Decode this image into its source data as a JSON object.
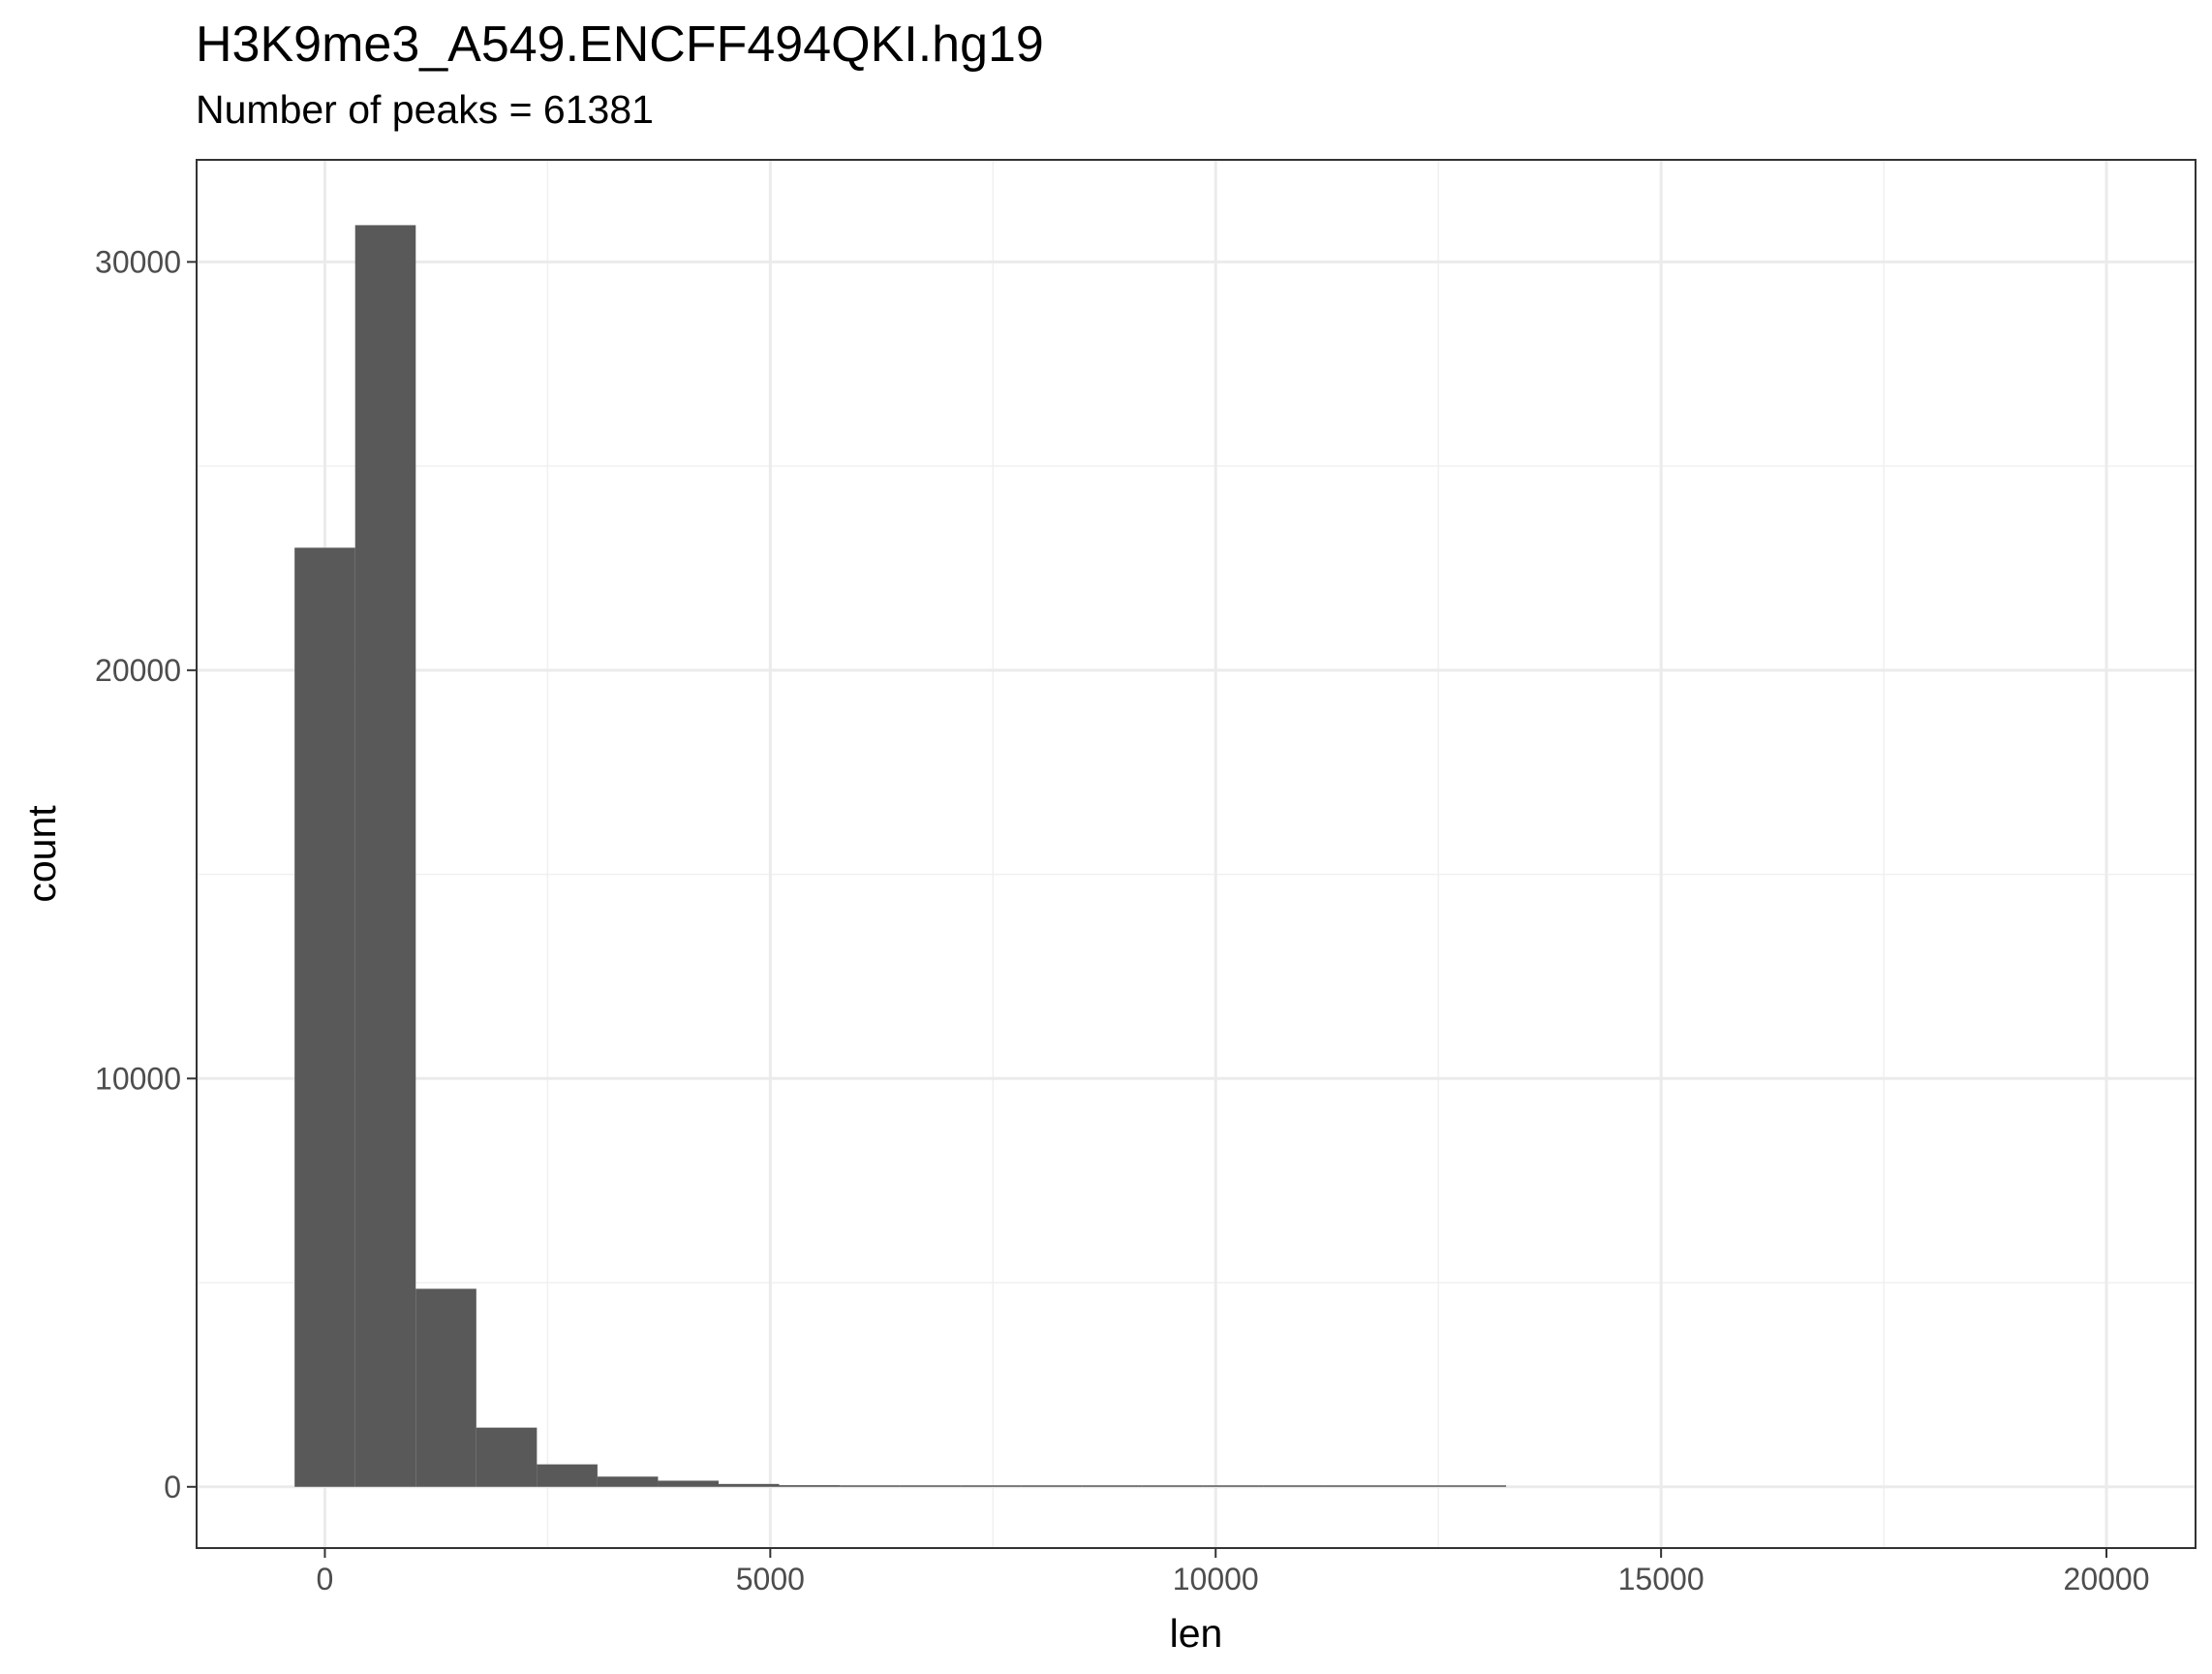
{
  "chart_data": {
    "type": "bar",
    "title": "H3K9me3_A549.ENCFF494QKI.hg19",
    "subtitle": "Number of peaks = 61381",
    "xlabel": "len",
    "ylabel": "count",
    "xlim": [
      -1440,
      21000
    ],
    "ylim": [
      -1500,
      32500
    ],
    "x_ticks": [
      0,
      5000,
      10000,
      15000,
      20000
    ],
    "x_tick_labels": [
      "0",
      "5000",
      "10000",
      "15000",
      "20000"
    ],
    "y_ticks": [
      0,
      10000,
      20000,
      30000
    ],
    "y_tick_labels": [
      "0",
      "10000",
      "20000",
      "30000"
    ],
    "grid": true,
    "bar_color": "#595959",
    "bins": [
      {
        "x0": -340,
        "x1": 340,
        "count": 23000
      },
      {
        "x0": 340,
        "x1": 1020,
        "count": 30900
      },
      {
        "x0": 1020,
        "x1": 1700,
        "count": 4850
      },
      {
        "x0": 1700,
        "x1": 2380,
        "count": 1450
      },
      {
        "x0": 2380,
        "x1": 3060,
        "count": 550
      },
      {
        "x0": 3060,
        "x1": 3740,
        "count": 250
      },
      {
        "x0": 3740,
        "x1": 4420,
        "count": 150
      },
      {
        "x0": 4420,
        "x1": 5100,
        "count": 70
      },
      {
        "x0": 5100,
        "x1": 5780,
        "count": 40
      },
      {
        "x0": 5780,
        "x1": 6460,
        "count": 20
      },
      {
        "x0": 6460,
        "x1": 7140,
        "count": 15
      },
      {
        "x0": 7140,
        "x1": 7820,
        "count": 10
      },
      {
        "x0": 7820,
        "x1": 8500,
        "count": 5
      },
      {
        "x0": 8500,
        "x1": 9180,
        "count": 4
      },
      {
        "x0": 9180,
        "x1": 9860,
        "count": 3
      },
      {
        "x0": 9860,
        "x1": 10540,
        "count": 3
      },
      {
        "x0": 10540,
        "x1": 11220,
        "count": 2
      },
      {
        "x0": 11220,
        "x1": 11900,
        "count": 2
      },
      {
        "x0": 11900,
        "x1": 12580,
        "count": 1
      },
      {
        "x0": 12580,
        "x1": 13260,
        "count": 1
      }
    ]
  }
}
